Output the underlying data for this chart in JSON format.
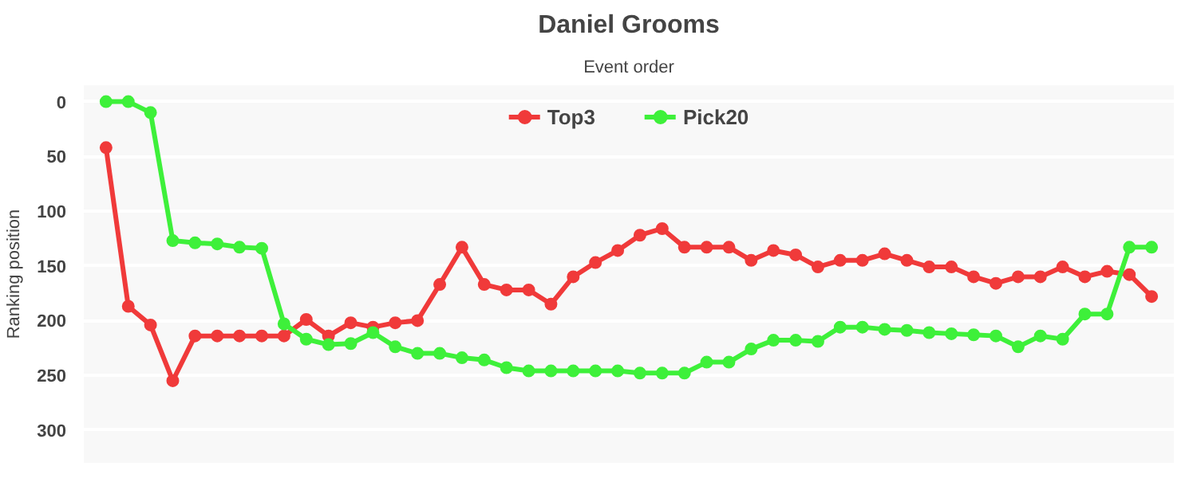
{
  "chart_data": {
    "type": "line",
    "title": "Daniel Grooms",
    "xlabel": "Event order",
    "ylabel": "Ranking position",
    "categories": [
      null,
      null,
      null,
      null,
      null,
      null,
      null,
      null,
      null,
      null,
      null,
      null,
      null,
      null,
      null,
      null,
      null,
      null,
      null,
      null,
      null,
      null,
      null,
      null,
      null,
      null,
      null,
      null,
      null,
      null,
      null,
      null,
      null,
      null,
      null,
      null,
      null,
      null,
      null,
      null,
      null,
      null,
      null,
      null,
      null,
      null,
      null,
      null
    ],
    "series": [
      {
        "name": "Top3",
        "color": "#f03a3a",
        "values": [
          42,
          187,
          204,
          255,
          214,
          214,
          214,
          214,
          214,
          199,
          214,
          202,
          206,
          202,
          200,
          167,
          133,
          167,
          172,
          172,
          185,
          160,
          147,
          136,
          122,
          116,
          133,
          133,
          133,
          145,
          136,
          140,
          151,
          145,
          145,
          139,
          145,
          151,
          151,
          160,
          166,
          160,
          160,
          151,
          160,
          155,
          158,
          178
        ]
      },
      {
        "name": "Pick20",
        "color": "#3ef03a",
        "values": [
          0,
          0,
          10,
          127,
          129,
          130,
          133,
          134,
          203,
          217,
          222,
          221,
          211,
          224,
          230,
          230,
          234,
          236,
          243,
          246,
          246,
          246,
          246,
          246,
          248,
          248,
          248,
          238,
          238,
          226,
          218,
          218,
          219,
          206,
          206,
          208,
          209,
          211,
          212,
          213,
          214,
          224,
          214,
          217,
          194,
          194,
          133,
          133
        ]
      }
    ],
    "ylim": [
      330,
      -15
    ],
    "yticks": [
      0,
      50,
      100,
      150,
      200,
      250,
      300
    ],
    "grid": "y",
    "legend": "top",
    "marker": "circle",
    "line_style": "solid",
    "tick_labels": "y"
  }
}
